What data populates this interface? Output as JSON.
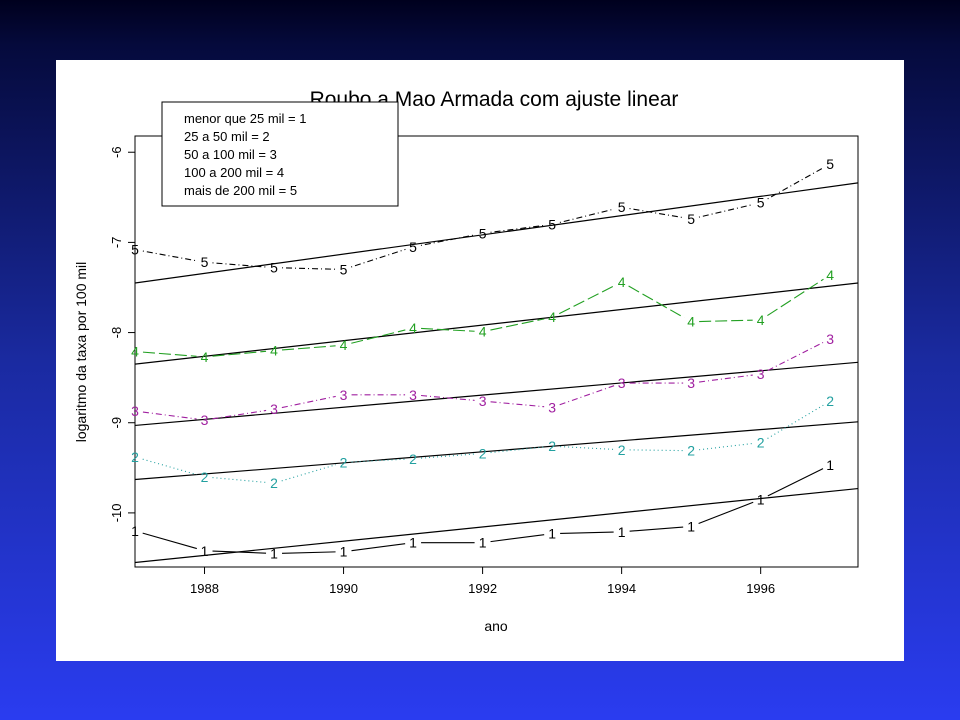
{
  "chart_data": {
    "type": "line",
    "title": "Roubo a Mao Armada com ajuste linear",
    "xlabel": "ano",
    "ylabel": "logaritmo da taxa por 100 mil",
    "xlim": [
      1987,
      1997.4
    ],
    "ylim": [
      -10.6,
      -5.82
    ],
    "x_ticks": [
      1988,
      1990,
      1992,
      1994,
      1996
    ],
    "y_ticks": [
      -10,
      -9,
      -8,
      -7,
      -6
    ],
    "x": [
      1987,
      1988,
      1989,
      1990,
      1991,
      1992,
      1993,
      1994,
      1995,
      1996,
      1997
    ],
    "legend": {
      "placement": "top-left",
      "entries": [
        "menor que 25 mil = 1",
        "25 a 50 mil = 2",
        "50 a 100 mil = 3",
        "100 a 200 mil = 4",
        "mais de 200 mil = 5"
      ]
    },
    "series": [
      {
        "marker": "1",
        "color": "#000000",
        "dash": "",
        "values": [
          -10.2,
          -10.42,
          -10.45,
          -10.43,
          -10.33,
          -10.33,
          -10.23,
          -10.21,
          -10.15,
          -9.85,
          -9.47
        ],
        "fit": [
          -10.55,
          -9.73
        ]
      },
      {
        "marker": "2",
        "color": "#22a0a0",
        "dash": "1 3",
        "values": [
          -9.38,
          -9.6,
          -9.67,
          -9.44,
          -9.4,
          -9.34,
          -9.26,
          -9.3,
          -9.31,
          -9.22,
          -8.76
        ],
        "fit": [
          -9.63,
          -8.99
        ]
      },
      {
        "marker": "3",
        "color": "#a020a0",
        "dash": "6 3 1 3",
        "values": [
          -8.87,
          -8.97,
          -8.85,
          -8.69,
          -8.69,
          -8.76,
          -8.83,
          -8.56,
          -8.56,
          -8.46,
          -8.07
        ],
        "fit": [
          -9.03,
          -8.33
        ]
      },
      {
        "marker": "4",
        "color": "#22a022",
        "dash": "12 4",
        "values": [
          -8.21,
          -8.27,
          -8.2,
          -8.14,
          -7.95,
          -7.99,
          -7.83,
          -7.44,
          -7.88,
          -7.86,
          -7.36
        ],
        "fit": [
          -8.35,
          -7.45
        ]
      },
      {
        "marker": "5",
        "color": "#000000",
        "dash": "1 3 6 3",
        "values": [
          -7.08,
          -7.22,
          -7.28,
          -7.3,
          -7.05,
          -6.9,
          -6.8,
          -6.61,
          -6.74,
          -6.56,
          -6.13
        ],
        "fit": [
          -7.45,
          -6.34
        ]
      }
    ]
  }
}
